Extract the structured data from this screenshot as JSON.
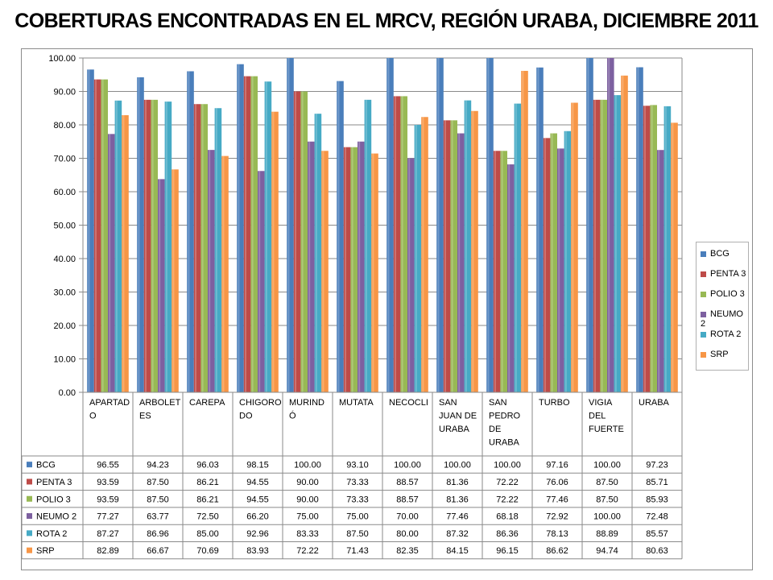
{
  "title": "COBERTURAS ENCONTRADAS EN EL MRCV, REGIÓN URABA, DICIEMBRE 2011",
  "chart_data": {
    "type": "bar",
    "title": "COBERTURAS ENCONTRADAS EN EL MRCV, REGIÓN URABA, DICIEMBRE 2011",
    "xlabel": "",
    "ylabel": "",
    "ylim": [
      0,
      100
    ],
    "y_ticks": [
      "0.00",
      "10.00",
      "20.00",
      "30.00",
      "40.00",
      "50.00",
      "60.00",
      "70.00",
      "80.00",
      "90.00",
      "100.00"
    ],
    "grid": true,
    "legend_position": "right",
    "categories": [
      [
        "APARTAD",
        "O"
      ],
      [
        "ARBOLET",
        "ES"
      ],
      [
        "CAREPA"
      ],
      [
        "CHIGORO",
        "DO"
      ],
      [
        "MURIND",
        "Ó"
      ],
      [
        "MUTATA"
      ],
      [
        "NECOCLI"
      ],
      [
        "SAN",
        "JUAN DE",
        "URABA"
      ],
      [
        "SAN",
        "PEDRO",
        "DE",
        "URABA"
      ],
      [
        "TURBO"
      ],
      [
        "VIGIA",
        "DEL",
        "FUERTE"
      ],
      [
        "URABA"
      ]
    ],
    "series": [
      {
        "name": "BCG",
        "color": "#4a7ebb",
        "values": [
          96.55,
          94.23,
          96.03,
          98.15,
          100.0,
          93.1,
          100.0,
          100.0,
          100.0,
          97.16,
          100.0,
          97.23
        ],
        "labels": [
          "96.55",
          "94.23",
          "96.03",
          "98.15",
          "100.00",
          "93.10",
          "100.00",
          "100.00",
          "100.00",
          "97.16",
          "100.00",
          "97.23"
        ]
      },
      {
        "name": "PENTA 3",
        "color": "#be4b48",
        "values": [
          93.59,
          87.5,
          86.21,
          94.55,
          90.0,
          73.33,
          88.57,
          81.36,
          72.22,
          76.06,
          87.5,
          85.71
        ],
        "labels": [
          "93.59",
          "87.50",
          "86.21",
          "94.55",
          "90.00",
          "73.33",
          "88.57",
          "81.36",
          "72.22",
          "76.06",
          "87.50",
          "85.71"
        ]
      },
      {
        "name": "POLIO 3",
        "color": "#98b954",
        "values": [
          93.59,
          87.5,
          86.21,
          94.55,
          90.0,
          73.33,
          88.57,
          81.36,
          72.22,
          77.46,
          87.5,
          85.93
        ],
        "labels": [
          "93.59",
          "87.50",
          "86.21",
          "94.55",
          "90.00",
          "73.33",
          "88.57",
          "81.36",
          "72.22",
          "77.46",
          "87.50",
          "85.93"
        ]
      },
      {
        "name": "NEUMO 2",
        "color": "#7d60a0",
        "values": [
          77.27,
          63.77,
          72.5,
          66.2,
          75.0,
          75.0,
          70.0,
          77.46,
          68.18,
          72.92,
          100.0,
          72.48
        ],
        "labels": [
          "77.27",
          "63.77",
          "72.50",
          "66.20",
          "75.00",
          "75.00",
          "70.00",
          "77.46",
          "68.18",
          "72.92",
          "100.00",
          "72.48"
        ]
      },
      {
        "name": "ROTA 2",
        "color": "#46aac5",
        "values": [
          87.27,
          86.96,
          85.0,
          92.96,
          83.33,
          87.5,
          80.0,
          87.32,
          86.36,
          78.13,
          88.89,
          85.57
        ],
        "labels": [
          "87.27",
          "86.96",
          "85.00",
          "92.96",
          "83.33",
          "87.50",
          "80.00",
          "87.32",
          "86.36",
          "78.13",
          "88.89",
          "85.57"
        ]
      },
      {
        "name": "SRP",
        "color": "#f79646",
        "values": [
          82.89,
          66.67,
          70.69,
          83.93,
          72.22,
          71.43,
          82.35,
          84.15,
          96.15,
          86.62,
          94.74,
          80.63
        ],
        "labels": [
          "82.89",
          "66.67",
          "70.69",
          "83.93",
          "72.22",
          "71.43",
          "82.35",
          "84.15",
          "96.15",
          "86.62",
          "94.74",
          "80.63"
        ]
      }
    ]
  }
}
